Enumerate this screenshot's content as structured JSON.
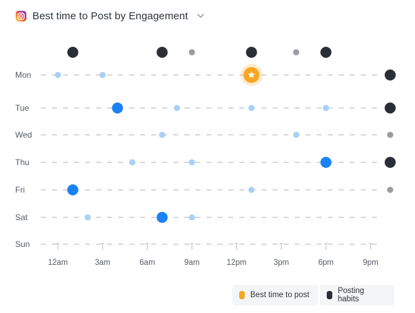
{
  "header": {
    "title": "Best time to Post by Engagement",
    "platform_icon": "instagram-icon",
    "dropdown_icon": "chevron-down-icon"
  },
  "colors": {
    "best": "#f5a623",
    "habit": "#2b2e37",
    "habit_small": "#9a9ca1",
    "engagement_high": "#1a82f5",
    "engagement_low": "#a9d0f8",
    "dash": "#c9ccd1",
    "label": "#555a63"
  },
  "chart_data": {
    "type": "scatter",
    "days": [
      "Mon",
      "Tue",
      "Wed",
      "Thu",
      "Fri",
      "Sat",
      "Sun"
    ],
    "x_ticks": [
      "12am",
      "3am",
      "6am",
      "9am",
      "12pm",
      "3pm",
      "6pm",
      "9pm"
    ],
    "hour_range": [
      0,
      24
    ],
    "posting_habits_by_hour": [
      {
        "hour": 1,
        "size": "large"
      },
      {
        "hour": 7,
        "size": "large"
      },
      {
        "hour": 9,
        "size": "small"
      },
      {
        "hour": 13,
        "size": "large"
      },
      {
        "hour": 16,
        "size": "small"
      },
      {
        "hour": 18,
        "size": "large"
      }
    ],
    "posting_habits_by_day": [
      {
        "day": "Mon",
        "size": "large"
      },
      {
        "day": "Tue",
        "size": "large"
      },
      {
        "day": "Wed",
        "size": "small"
      },
      {
        "day": "Thu",
        "size": "large"
      },
      {
        "day": "Fri",
        "size": "small"
      }
    ],
    "engagement": [
      {
        "day": "Mon",
        "hour": 0,
        "level": "low"
      },
      {
        "day": "Mon",
        "hour": 3,
        "level": "low"
      },
      {
        "day": "Tue",
        "hour": 4,
        "level": "high"
      },
      {
        "day": "Tue",
        "hour": 8,
        "level": "low"
      },
      {
        "day": "Tue",
        "hour": 13,
        "level": "low"
      },
      {
        "day": "Tue",
        "hour": 18,
        "level": "low"
      },
      {
        "day": "Wed",
        "hour": 7,
        "level": "low"
      },
      {
        "day": "Wed",
        "hour": 16,
        "level": "low"
      },
      {
        "day": "Thu",
        "hour": 5,
        "level": "low"
      },
      {
        "day": "Thu",
        "hour": 9,
        "level": "low"
      },
      {
        "day": "Thu",
        "hour": 18,
        "level": "high"
      },
      {
        "day": "Fri",
        "hour": 1,
        "level": "high"
      },
      {
        "day": "Fri",
        "hour": 13,
        "level": "low"
      },
      {
        "day": "Sat",
        "hour": 2,
        "level": "low"
      },
      {
        "day": "Sat",
        "hour": 7,
        "level": "high"
      },
      {
        "day": "Sat",
        "hour": 9,
        "level": "low"
      }
    ],
    "best_time": {
      "day": "Mon",
      "hour": 13
    }
  },
  "legend": {
    "best_label": "Best time to post",
    "habits_label": "Posting habits"
  }
}
